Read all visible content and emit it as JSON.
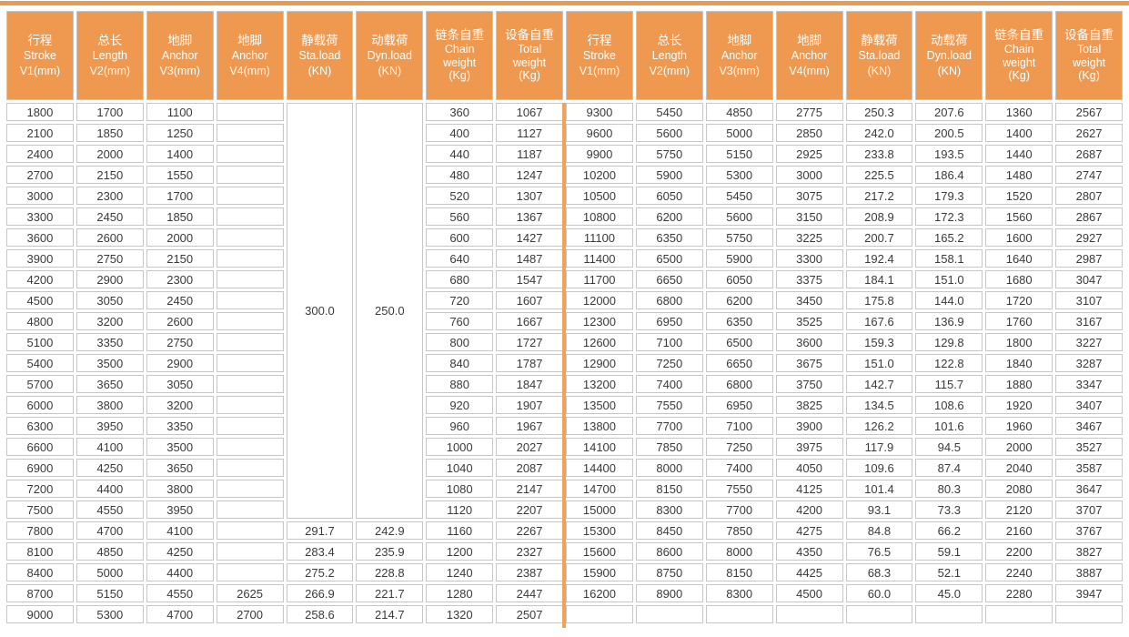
{
  "header_repeats": 2,
  "header_columns": [
    {
      "name": "stroke",
      "lines": [
        "行程",
        "Stroke",
        "V1(mm)"
      ]
    },
    {
      "name": "length",
      "lines": [
        "总长",
        "Length",
        "V2(mm)"
      ]
    },
    {
      "name": "anchor-v3",
      "lines": [
        "地脚",
        "Anchor",
        "V3(mm)"
      ]
    },
    {
      "name": "anchor-v4",
      "lines": [
        "地脚",
        "Anchor",
        "V4(mm)"
      ]
    },
    {
      "name": "static-load",
      "lines": [
        "静载荷",
        "Sta.load",
        "(KN)"
      ]
    },
    {
      "name": "dynamic-load",
      "lines": [
        "动载荷",
        "Dyn.load",
        "(KN)"
      ]
    },
    {
      "name": "chain-weight",
      "lines": [
        "链条自重",
        "Chain",
        "weight",
        "(Kg)"
      ]
    },
    {
      "name": "total-weight",
      "lines": [
        "设备自重",
        "Total",
        "weight",
        "(Kg)"
      ]
    }
  ],
  "merged_left": {
    "sta_load": "300.0",
    "dyn_load": "250.0",
    "rowspan": 20
  },
  "left_rows": [
    [
      "1800",
      "1700",
      "1100",
      "",
      null,
      null,
      "360",
      "1067"
    ],
    [
      "2100",
      "1850",
      "1250",
      "",
      null,
      null,
      "400",
      "1127"
    ],
    [
      "2400",
      "2000",
      "1400",
      "",
      null,
      null,
      "440",
      "1187"
    ],
    [
      "2700",
      "2150",
      "1550",
      "",
      null,
      null,
      "480",
      "1247"
    ],
    [
      "3000",
      "2300",
      "1700",
      "",
      null,
      null,
      "520",
      "1307"
    ],
    [
      "3300",
      "2450",
      "1850",
      "",
      null,
      null,
      "560",
      "1367"
    ],
    [
      "3600",
      "2600",
      "2000",
      "",
      null,
      null,
      "600",
      "1427"
    ],
    [
      "3900",
      "2750",
      "2150",
      "",
      null,
      null,
      "640",
      "1487"
    ],
    [
      "4200",
      "2900",
      "2300",
      "",
      null,
      null,
      "680",
      "1547"
    ],
    [
      "4500",
      "3050",
      "2450",
      "",
      null,
      null,
      "720",
      "1607"
    ],
    [
      "4800",
      "3200",
      "2600",
      "",
      null,
      null,
      "760",
      "1667"
    ],
    [
      "5100",
      "3350",
      "2750",
      "",
      null,
      null,
      "800",
      "1727"
    ],
    [
      "5400",
      "3500",
      "2900",
      "",
      null,
      null,
      "840",
      "1787"
    ],
    [
      "5700",
      "3650",
      "3050",
      "",
      null,
      null,
      "880",
      "1847"
    ],
    [
      "6000",
      "3800",
      "3200",
      "",
      null,
      null,
      "920",
      "1907"
    ],
    [
      "6300",
      "3950",
      "3350",
      "",
      null,
      null,
      "960",
      "1967"
    ],
    [
      "6600",
      "4100",
      "3500",
      "",
      null,
      null,
      "1000",
      "2027"
    ],
    [
      "6900",
      "4250",
      "3650",
      "",
      null,
      null,
      "1040",
      "2087"
    ],
    [
      "7200",
      "4400",
      "3800",
      "",
      null,
      null,
      "1080",
      "2147"
    ],
    [
      "7500",
      "4550",
      "3950",
      "",
      null,
      null,
      "1120",
      "2207"
    ],
    [
      "7800",
      "4700",
      "4100",
      "",
      "291.7",
      "242.9",
      "1160",
      "2267"
    ],
    [
      "8100",
      "4850",
      "4250",
      "",
      "283.4",
      "235.9",
      "1200",
      "2327"
    ],
    [
      "8400",
      "5000",
      "4400",
      "",
      "275.2",
      "228.8",
      "1240",
      "2387"
    ],
    [
      "8700",
      "5150",
      "4550",
      "2625",
      "266.9",
      "221.7",
      "1280",
      "2447"
    ],
    [
      "9000",
      "5300",
      "4700",
      "2700",
      "258.6",
      "214.7",
      "1320",
      "2507"
    ]
  ],
  "right_rows": [
    [
      "9300",
      "5450",
      "4850",
      "2775",
      "250.3",
      "207.6",
      "1360",
      "2567"
    ],
    [
      "9600",
      "5600",
      "5000",
      "2850",
      "242.0",
      "200.5",
      "1400",
      "2627"
    ],
    [
      "9900",
      "5750",
      "5150",
      "2925",
      "233.8",
      "193.5",
      "1440",
      "2687"
    ],
    [
      "10200",
      "5900",
      "5300",
      "3000",
      "225.5",
      "186.4",
      "1480",
      "2747"
    ],
    [
      "10500",
      "6050",
      "5450",
      "3075",
      "217.2",
      "179.3",
      "1520",
      "2807"
    ],
    [
      "10800",
      "6200",
      "5600",
      "3150",
      "208.9",
      "172.3",
      "1560",
      "2867"
    ],
    [
      "11100",
      "6350",
      "5750",
      "3225",
      "200.7",
      "165.2",
      "1600",
      "2927"
    ],
    [
      "11400",
      "6500",
      "5900",
      "3300",
      "192.4",
      "158.1",
      "1640",
      "2987"
    ],
    [
      "11700",
      "6650",
      "6050",
      "3375",
      "184.1",
      "151.0",
      "1680",
      "3047"
    ],
    [
      "12000",
      "6800",
      "6200",
      "3450",
      "175.8",
      "144.0",
      "1720",
      "3107"
    ],
    [
      "12300",
      "6950",
      "6350",
      "3525",
      "167.6",
      "136.9",
      "1760",
      "3167"
    ],
    [
      "12600",
      "7100",
      "6500",
      "3600",
      "159.3",
      "129.8",
      "1800",
      "3227"
    ],
    [
      "12900",
      "7250",
      "6650",
      "3675",
      "151.0",
      "122.8",
      "1840",
      "3287"
    ],
    [
      "13200",
      "7400",
      "6800",
      "3750",
      "142.7",
      "115.7",
      "1880",
      "3347"
    ],
    [
      "13500",
      "7550",
      "6950",
      "3825",
      "134.5",
      "108.6",
      "1920",
      "3407"
    ],
    [
      "13800",
      "7700",
      "7100",
      "3900",
      "126.2",
      "101.6",
      "1960",
      "3467"
    ],
    [
      "14100",
      "7850",
      "7250",
      "3975",
      "117.9",
      "94.5",
      "2000",
      "3527"
    ],
    [
      "14400",
      "8000",
      "7400",
      "4050",
      "109.6",
      "87.4",
      "2040",
      "3587"
    ],
    [
      "14700",
      "8150",
      "7550",
      "4125",
      "101.4",
      "80.3",
      "2080",
      "3647"
    ],
    [
      "15000",
      "8300",
      "7700",
      "4200",
      "93.1",
      "73.3",
      "2120",
      "3707"
    ],
    [
      "15300",
      "8450",
      "7850",
      "4275",
      "84.8",
      "66.2",
      "2160",
      "3767"
    ],
    [
      "15600",
      "8600",
      "8000",
      "4350",
      "76.5",
      "59.1",
      "2200",
      "3827"
    ],
    [
      "15900",
      "8750",
      "8150",
      "4425",
      "68.3",
      "52.1",
      "2240",
      "3887"
    ],
    [
      "16200",
      "8900",
      "8300",
      "4500",
      "60.0",
      "45.0",
      "2280",
      "3947"
    ],
    [
      "",
      "",
      "",
      "",
      "",
      "",
      "",
      ""
    ]
  ],
  "colors": {
    "header_bg": "#EF9950",
    "divider": "#F2A155",
    "grid": "#C6C6C6",
    "body_text": "#3A3A3A"
  }
}
